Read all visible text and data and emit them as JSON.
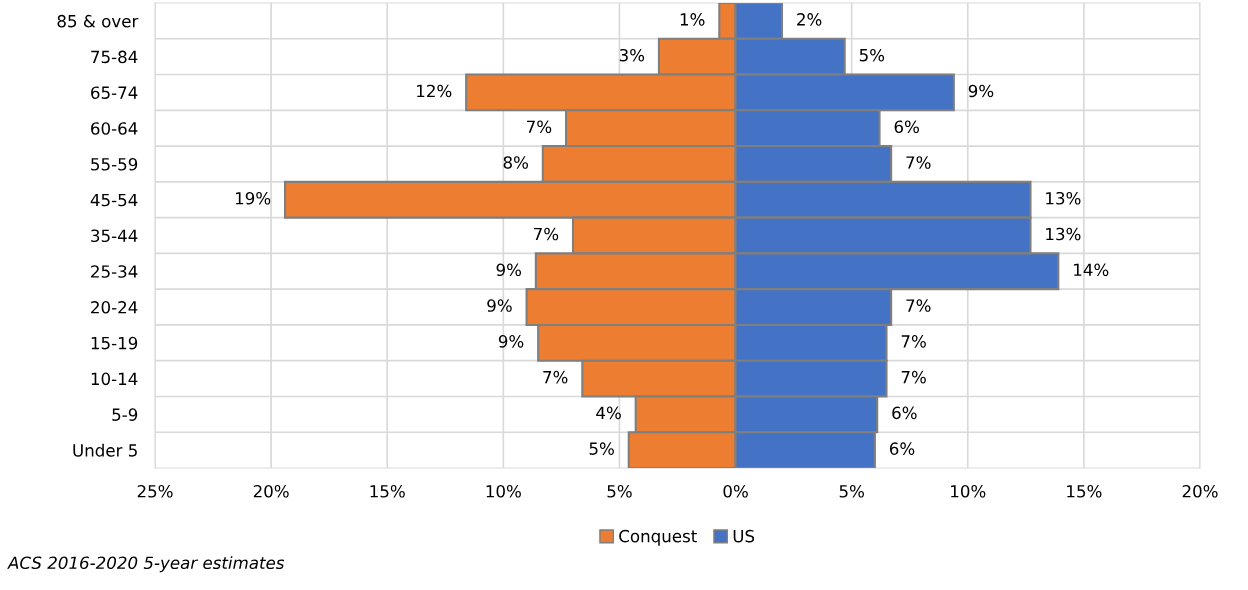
{
  "chart_data": {
    "type": "bar",
    "orientation": "horizontal",
    "categories": [
      "85 & over",
      "75-84",
      "65-74",
      "60-64",
      "55-59",
      "45-54",
      "35-44",
      "25-34",
      "20-24",
      "15-19",
      "10-14",
      "5-9",
      "Under 5"
    ],
    "series": [
      {
        "name": "Conquest",
        "color": "#ed7d31",
        "base": [
          -0.7,
          -3.3,
          -11.6,
          -7.3,
          -8.3,
          -19.4,
          -7.0,
          -8.6,
          -9.0,
          -8.5,
          -6.6,
          -4.3,
          -4.6
        ],
        "values": [
          0.7,
          3.3,
          11.6,
          7.3,
          8.3,
          19.4,
          7.0,
          8.6,
          9.0,
          8.5,
          6.6,
          4.3,
          4.6
        ],
        "value_labels": [
          "1%",
          "3%",
          "12%",
          "7%",
          "8%",
          "19%",
          "7%",
          "9%",
          "9%",
          "9%",
          "7%",
          "4%",
          "5%"
        ]
      },
      {
        "name": "US",
        "color": "#4472c4",
        "values": [
          2.0,
          4.7,
          9.4,
          6.2,
          6.7,
          12.7,
          12.7,
          13.9,
          6.7,
          6.5,
          6.5,
          6.1,
          6.0
        ],
        "value_labels": [
          "2%",
          "5%",
          "9%",
          "6%",
          "7%",
          "13%",
          "13%",
          "14%",
          "7%",
          "7%",
          "7%",
          "6%",
          "6%"
        ]
      }
    ],
    "xlim": [
      -25,
      20
    ],
    "xticks": [
      {
        "value": -25,
        "label": "25%"
      },
      {
        "value": -20,
        "label": "20%"
      },
      {
        "value": -15,
        "label": "15%"
      },
      {
        "value": -10,
        "label": "10%"
      },
      {
        "value": -5,
        "label": "5%"
      },
      {
        "value": 0,
        "label": "0%"
      },
      {
        "value": 5,
        "label": "5%"
      },
      {
        "value": 10,
        "label": "10%"
      },
      {
        "value": 15,
        "label": "15%"
      },
      {
        "value": 20,
        "label": "20%"
      }
    ],
    "grid": true,
    "legend": "bottom",
    "annotations": [
      "ACS 2016-2020 5-year estimates"
    ]
  }
}
